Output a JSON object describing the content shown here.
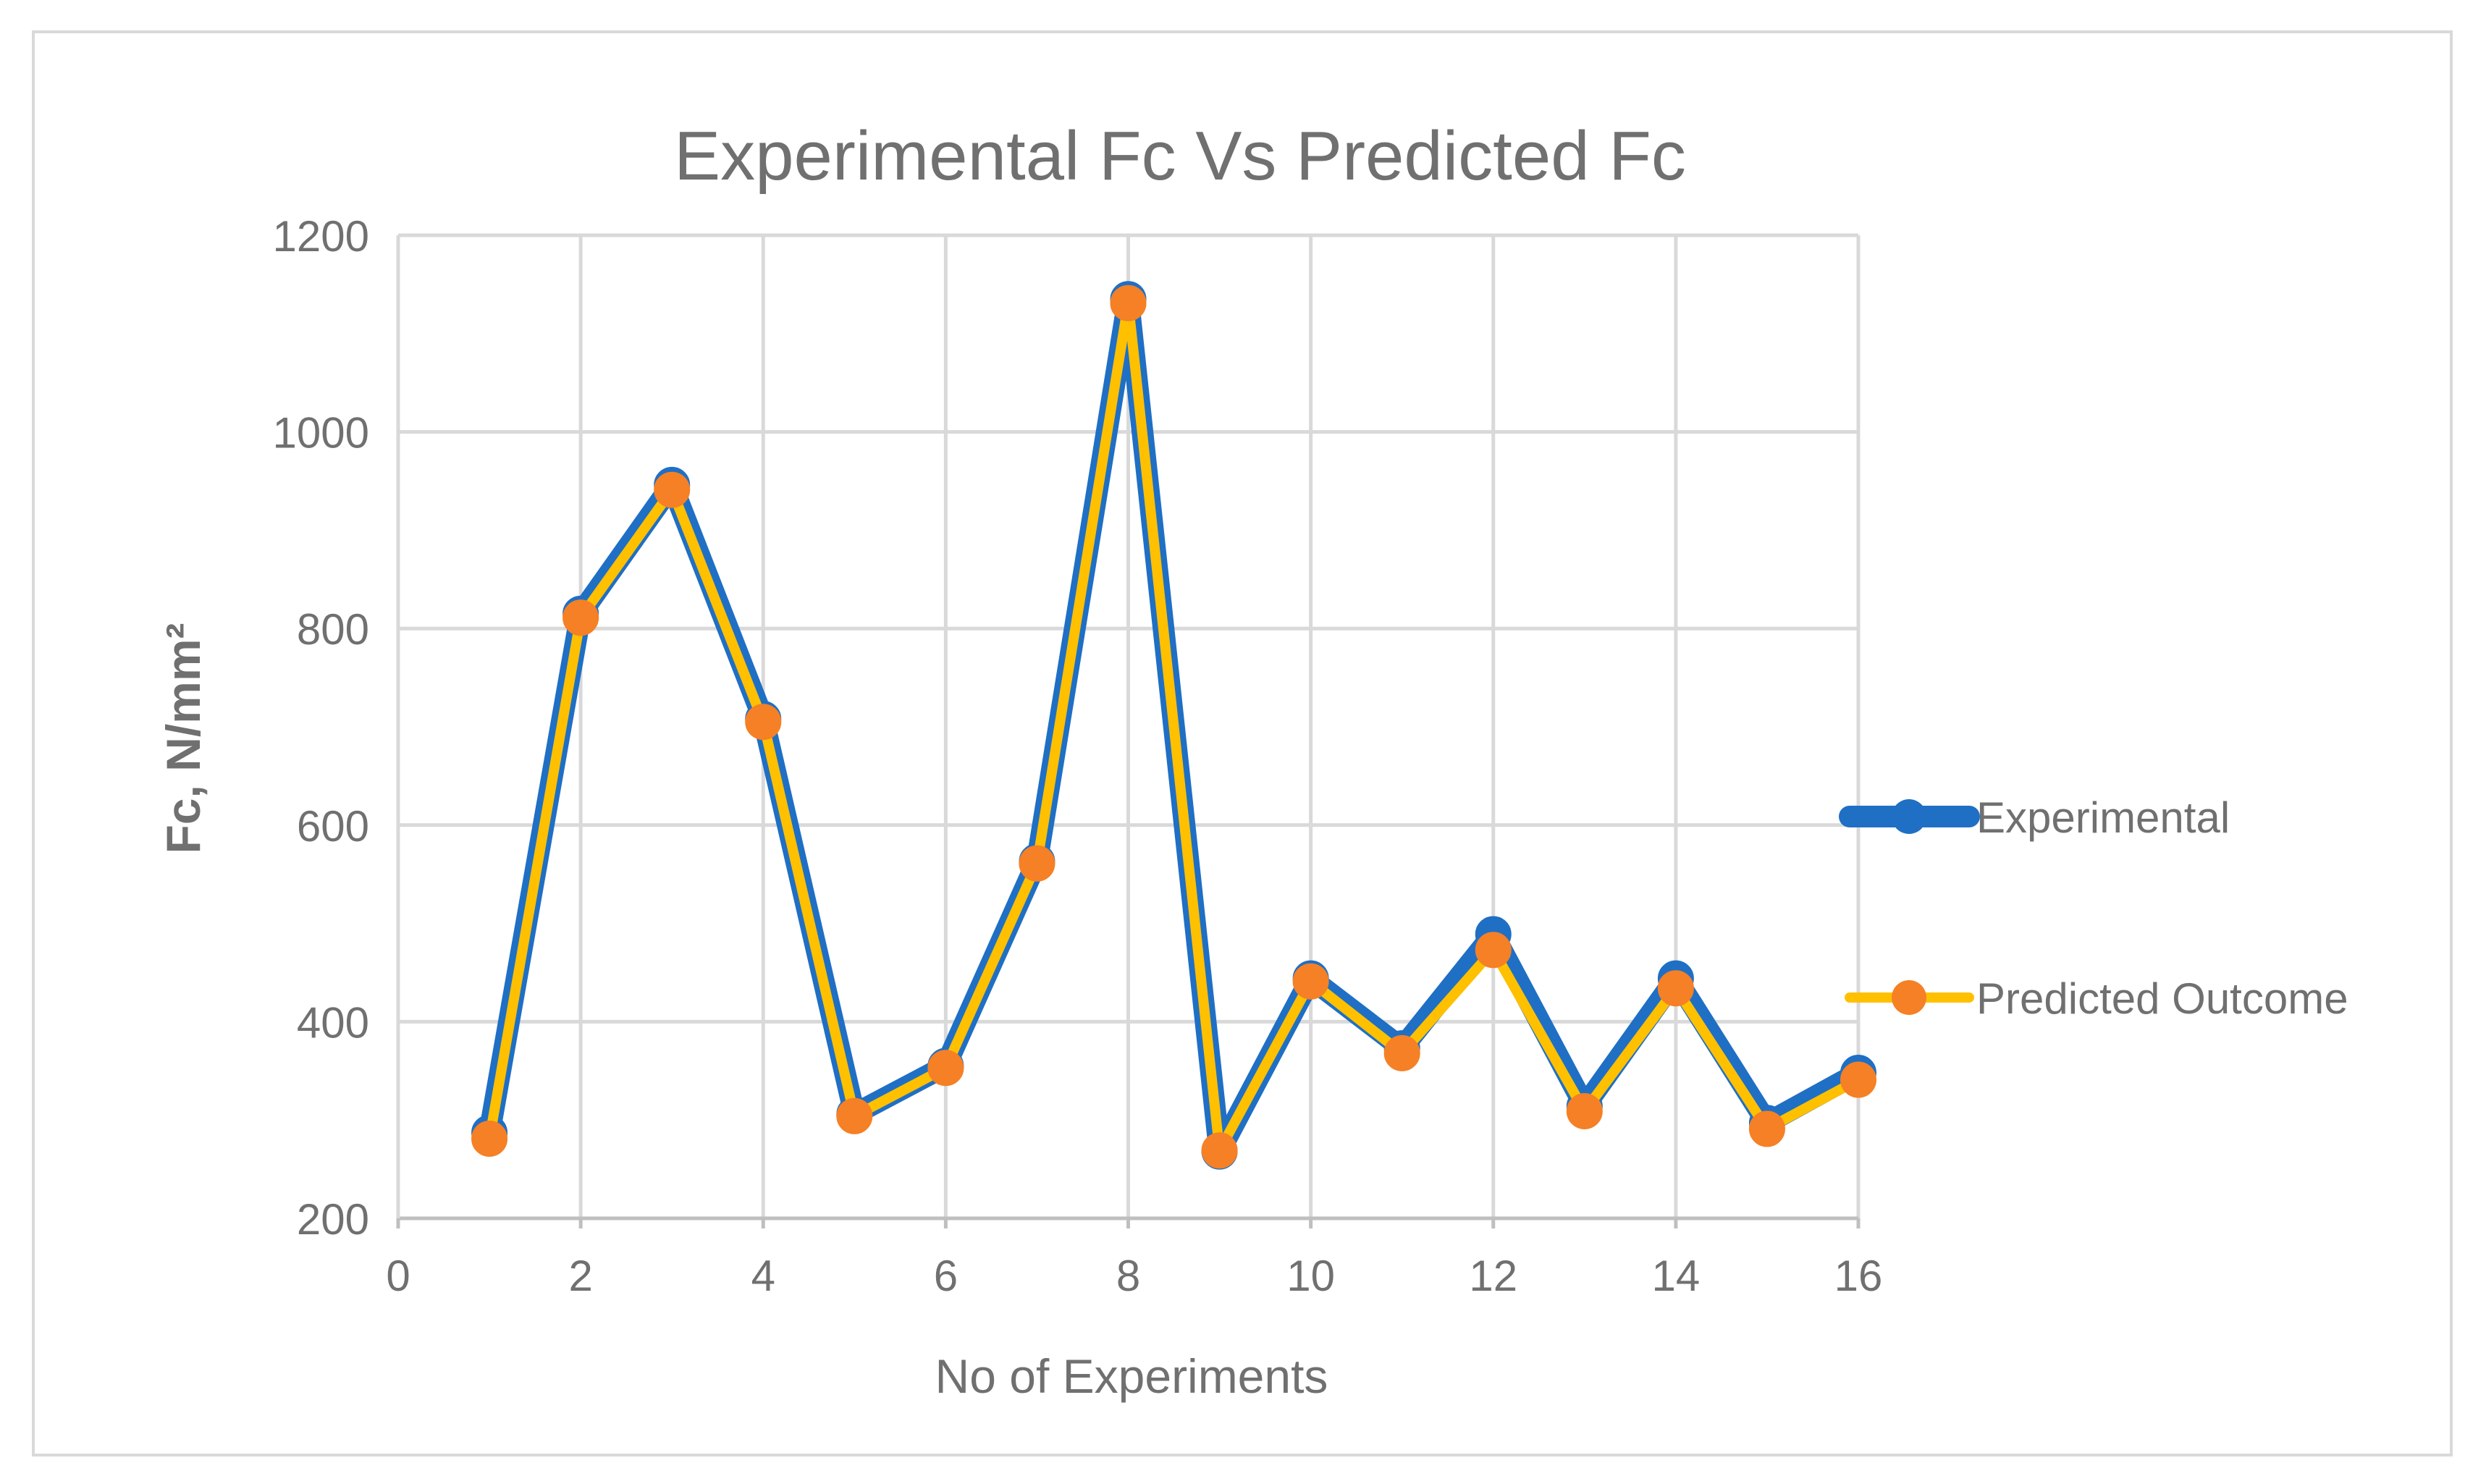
{
  "chart_data": {
    "type": "scatter",
    "subtype": "scatter-with-straight-lines-and-markers",
    "title": "Experimental Fc Vs Predicted Fc",
    "xlabel": "No of Experiments",
    "ylabel": "Fc, N/mm²",
    "xlim": [
      0,
      16
    ],
    "ylim": [
      200,
      1200
    ],
    "xticks": [
      0,
      2,
      4,
      6,
      8,
      10,
      12,
      14,
      16
    ],
    "yticks": [
      200,
      400,
      600,
      800,
      1000,
      1200
    ],
    "grid": true,
    "legend_position": "right",
    "series": [
      {
        "name": "Experimental",
        "color": "#1F6FC5",
        "x": [
          1,
          2,
          3,
          4,
          5,
          6,
          7,
          8,
          9,
          10,
          11,
          12,
          13,
          14,
          15,
          16
        ],
        "y": [
          287,
          815,
          946,
          708,
          306,
          355,
          563,
          1135,
          268,
          444,
          373,
          489,
          314,
          444,
          297,
          348
        ]
      },
      {
        "name": "Predicted Outcome",
        "color": "#FFC000",
        "marker_color": "#F58025",
        "x": [
          1,
          2,
          3,
          4,
          5,
          6,
          7,
          8,
          9,
          10,
          11,
          12,
          13,
          14,
          15,
          16
        ],
        "y": [
          281,
          811,
          941,
          705,
          304,
          353,
          561,
          1131,
          269,
          441,
          368,
          473,
          309,
          434,
          291,
          341
        ]
      }
    ]
  }
}
